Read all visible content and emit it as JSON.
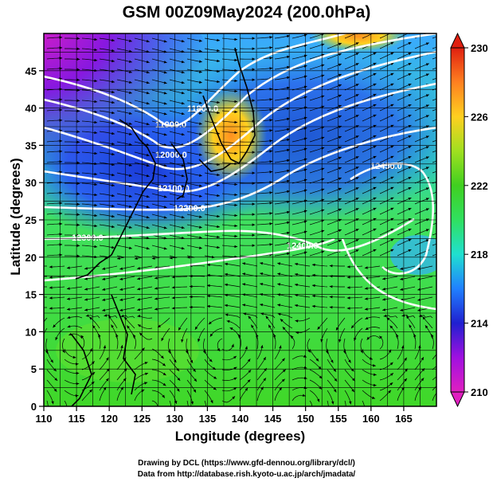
{
  "title": "GSM 00Z09May2024 (200.0hPa)",
  "x_axis": {
    "label": "Longitude (degrees)",
    "range": [
      110,
      170
    ],
    "ticks": [
      110,
      115,
      120,
      125,
      130,
      135,
      140,
      145,
      150,
      155,
      160,
      165
    ]
  },
  "y_axis": {
    "label": "Latitude  (degrees)",
    "range": [
      0,
      50
    ],
    "ticks": [
      0,
      5,
      10,
      15,
      20,
      25,
      30,
      35,
      40,
      45
    ]
  },
  "colorbar": {
    "range": [
      210,
      230
    ],
    "ticks": [
      210,
      214,
      218,
      222,
      226,
      230
    ],
    "colors": [
      "#e020c0",
      "#a010e0",
      "#2020d0",
      "#2080ff",
      "#20e0d0",
      "#30e060",
      "#40d020",
      "#a0e020",
      "#ffd020",
      "#ff8020",
      "#e02010"
    ]
  },
  "contour_labels": [
    "11800.0",
    "11900.0",
    "12000.0",
    "12100.0",
    "12200.0",
    "12300.0",
    "12400.0",
    "12450.0",
    "12500.0"
  ],
  "footer": {
    "line1": "Drawing by DCL (https://www.gfd-dennou.org/library/dcl/)",
    "line2": "Data from http://database.rish.kyoto-u.ac.jp/arch/jmadata/"
  }
}
